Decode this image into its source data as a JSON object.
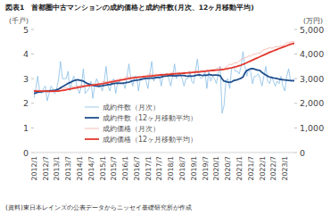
{
  "chart_data": {
    "type": "line",
    "title": "図表1　首都圏中古マンションの成約価格と成約件数(月次、12ヶ月移動平均)",
    "y_label": "(千戸)",
    "y2_label": "(万円)",
    "source": "(資料)東日本レインズの公表データからニッセイ基礎研究所が作成",
    "categories": [
      "2012/1",
      null,
      null,
      null,
      null,
      null,
      "2012/7",
      null,
      null,
      null,
      null,
      null,
      "2013/1",
      null,
      null,
      null,
      null,
      null,
      "2013/7",
      null,
      null,
      null,
      null,
      null,
      "2014/1",
      null,
      null,
      null,
      null,
      null,
      "2014/7",
      null,
      null,
      null,
      null,
      null,
      "2015/1",
      null,
      null,
      null,
      null,
      null,
      "2015/7",
      null,
      null,
      null,
      null,
      null,
      "2016/1",
      null,
      null,
      null,
      null,
      null,
      "2016/7",
      null,
      null,
      null,
      null,
      null,
      "2017/1",
      null,
      null,
      null,
      null,
      null,
      "2017/7",
      null,
      null,
      null,
      null,
      null,
      "2018/1",
      null,
      null,
      null,
      null,
      null,
      "2018/7",
      null,
      null,
      null,
      null,
      null,
      "2019/1",
      null,
      null,
      null,
      null,
      null,
      "2019/7",
      null,
      null,
      null,
      null,
      null,
      "2020/1",
      null,
      null,
      null,
      null,
      null,
      "2020/7",
      null,
      null,
      null,
      null,
      null,
      "2021/1",
      null,
      null,
      null,
      null,
      null,
      "2021/7",
      null,
      null,
      null,
      null,
      null,
      "2022/1",
      null,
      null,
      null,
      null,
      null,
      "2022/7",
      null,
      null,
      null,
      null,
      null,
      "2023/1",
      null,
      null,
      null,
      null,
      null
    ],
    "series": [
      {
        "name": "成約件数（月次）",
        "color": "#86bde6",
        "values": [
          2.2,
          2.6,
          3.1,
          2.5,
          2.4,
          2.6,
          2.7,
          2.1,
          2.4,
          2.7,
          2.6,
          2.4,
          2.6,
          3.0,
          3.7,
          3.0,
          3.0,
          3.0,
          3.3,
          2.5,
          2.9,
          3.1,
          2.9,
          2.6,
          2.4,
          2.7,
          3.4,
          2.4,
          2.5,
          2.6,
          2.9,
          2.2,
          2.7,
          3.0,
          2.8,
          2.7,
          2.5,
          2.9,
          3.5,
          2.7,
          2.5,
          2.9,
          3.0,
          2.4,
          2.8,
          2.9,
          2.8,
          2.8,
          2.6,
          3.1,
          3.6,
          3.0,
          2.7,
          3.1,
          3.1,
          2.5,
          3.0,
          3.0,
          3.1,
          2.9,
          2.6,
          3.2,
          3.7,
          2.9,
          3.0,
          3.1,
          3.1,
          2.7,
          3.2,
          3.1,
          3.2,
          3.0,
          2.7,
          3.1,
          3.6,
          3.0,
          3.2,
          3.2,
          3.0,
          2.7,
          3.0,
          3.0,
          3.3,
          2.9,
          2.8,
          3.3,
          3.8,
          3.1,
          3.0,
          3.1,
          3.3,
          2.6,
          3.3,
          2.9,
          3.1,
          3.0,
          2.8,
          3.2,
          3.5,
          1.6,
          1.9,
          2.9,
          3.0,
          2.6,
          3.4,
          3.5,
          3.3,
          3.3,
          3.2,
          3.5,
          4.1,
          3.5,
          3.1,
          3.4,
          3.3,
          2.8,
          3.1,
          3.1,
          3.2,
          3.0,
          2.7,
          3.1,
          3.5,
          2.9,
          2.8,
          3.1,
          2.9,
          2.7,
          2.9,
          2.8,
          3.1,
          2.7,
          2.5,
          3.1,
          3.4,
          2.9,
          2.9,
          3.0
        ]
      },
      {
        "name": "成約件数（12ヶ月移動平均）",
        "color": "#1f4e8c",
        "values": [
          2.4,
          2.42,
          2.45,
          2.46,
          2.47,
          2.48,
          2.5,
          2.49,
          2.5,
          2.51,
          2.52,
          2.52,
          2.55,
          2.58,
          2.63,
          2.67,
          2.72,
          2.76,
          2.81,
          2.84,
          2.88,
          2.92,
          2.94,
          2.96,
          2.94,
          2.92,
          2.9,
          2.85,
          2.81,
          2.78,
          2.75,
          2.73,
          2.71,
          2.7,
          2.69,
          2.7,
          2.71,
          2.73,
          2.74,
          2.76,
          2.76,
          2.79,
          2.8,
          2.81,
          2.82,
          2.81,
          2.81,
          2.82,
          2.83,
          2.85,
          2.86,
          2.89,
          2.91,
          2.93,
          2.94,
          2.95,
          2.97,
          2.98,
          3.0,
          3.01,
          3.01,
          3.02,
          3.03,
          3.02,
          3.05,
          3.05,
          3.05,
          3.07,
          3.09,
          3.1,
          3.11,
          3.12,
          3.13,
          3.12,
          3.11,
          3.12,
          3.13,
          3.14,
          3.13,
          3.13,
          3.11,
          3.1,
          3.11,
          3.1,
          3.11,
          3.13,
          3.15,
          3.16,
          3.14,
          3.13,
          3.15,
          3.14,
          3.17,
          3.16,
          3.14,
          3.15,
          3.15,
          3.14,
          3.12,
          2.99,
          2.9,
          2.89,
          2.86,
          2.86,
          2.87,
          2.92,
          2.94,
          2.96,
          2.99,
          3.02,
          3.07,
          3.23,
          3.33,
          3.37,
          3.4,
          3.41,
          3.39,
          3.36,
          3.35,
          3.33,
          3.25,
          3.2,
          3.15,
          3.1,
          3.07,
          3.05,
          3.03,
          3.02,
          3.0,
          2.98,
          2.97,
          2.96,
          2.95,
          2.94,
          2.93,
          2.92,
          2.92,
          2.91
        ]
      },
      {
        "name": "成約価格（月次）",
        "color": "#f4a9a3",
        "axis": "y2",
        "values": [
          2480,
          2520,
          2550,
          2470,
          2510,
          2490,
          2460,
          2530,
          2470,
          2500,
          2520,
          2480,
          2560,
          2580,
          2600,
          2560,
          2620,
          2640,
          2600,
          2610,
          2680,
          2650,
          2700,
          2680,
          2700,
          2760,
          2720,
          2690,
          2760,
          2740,
          2720,
          2800,
          2770,
          2790,
          2810,
          2780,
          2870,
          2890,
          2880,
          2860,
          2930,
          2900,
          2920,
          2950,
          2960,
          2980,
          2990,
          2960,
          3050,
          3100,
          3060,
          3040,
          3080,
          3060,
          3050,
          3110,
          3060,
          3090,
          3120,
          3080,
          3150,
          3200,
          3180,
          3130,
          3190,
          3140,
          3170,
          3200,
          3160,
          3180,
          3200,
          3180,
          3230,
          3260,
          3250,
          3200,
          3260,
          3230,
          3220,
          3270,
          3230,
          3250,
          3280,
          3240,
          3290,
          3330,
          3320,
          3280,
          3350,
          3320,
          3300,
          3360,
          3320,
          3350,
          3380,
          3340,
          3410,
          3440,
          3480,
          3380,
          3350,
          3480,
          3520,
          3590,
          3560,
          3620,
          3650,
          3640,
          3720,
          3770,
          3800,
          3850,
          3870,
          3930,
          3900,
          3980,
          3990,
          4000,
          4050,
          4020,
          4130,
          4180,
          4200,
          4220,
          4260,
          4240,
          4250,
          4310,
          4290,
          4300,
          4350,
          4330,
          4400,
          4450,
          4480,
          4470,
          4520,
          4480
        ]
      },
      {
        "name": "成約価格（12ヶ月移動平均）",
        "color": "#e2372d",
        "axis": "y2",
        "values": [
          2500,
          2498,
          2497,
          2495,
          2494,
          2493,
          2492,
          2491,
          2490,
          2490,
          2491,
          2492,
          2495,
          2500,
          2510,
          2520,
          2535,
          2550,
          2565,
          2580,
          2595,
          2610,
          2625,
          2640,
          2655,
          2670,
          2685,
          2700,
          2712,
          2722,
          2732,
          2742,
          2752,
          2762,
          2772,
          2782,
          2795,
          2810,
          2825,
          2840,
          2855,
          2870,
          2885,
          2900,
          2915,
          2930,
          2945,
          2960,
          2975,
          2990,
          3005,
          3018,
          3030,
          3040,
          3050,
          3060,
          3068,
          3075,
          3082,
          3090,
          3098,
          3106,
          3114,
          3122,
          3130,
          3138,
          3145,
          3152,
          3158,
          3164,
          3170,
          3176,
          3182,
          3188,
          3194,
          3200,
          3206,
          3212,
          3218,
          3224,
          3230,
          3236,
          3242,
          3248,
          3255,
          3262,
          3270,
          3278,
          3286,
          3294,
          3302,
          3310,
          3318,
          3326,
          3334,
          3342,
          3350,
          3358,
          3366,
          3370,
          3380,
          3395,
          3410,
          3425,
          3440,
          3460,
          3480,
          3500,
          3525,
          3550,
          3580,
          3615,
          3650,
          3685,
          3720,
          3755,
          3790,
          3825,
          3860,
          3895,
          3930,
          3965,
          4000,
          4035,
          4070,
          4100,
          4130,
          4160,
          4190,
          4220,
          4250,
          4280,
          4310,
          4340,
          4370,
          4400,
          4420,
          4440
        ]
      }
    ],
    "ylim": [
      0,
      5
    ],
    "yticks": [
      0,
      1,
      2,
      3,
      4,
      5
    ],
    "y2lim": [
      0,
      5000
    ],
    "y2ticks": [
      0,
      {
        "value": 1000,
        "label": "1,000"
      },
      {
        "value": 2000,
        "label": "2,000"
      },
      {
        "value": 3000,
        "label": "3,000"
      },
      {
        "value": 4000,
        "label": "4,000"
      },
      {
        "value": 5000,
        "label": "5,000"
      }
    ],
    "grid": false,
    "legend": "bottom"
  }
}
